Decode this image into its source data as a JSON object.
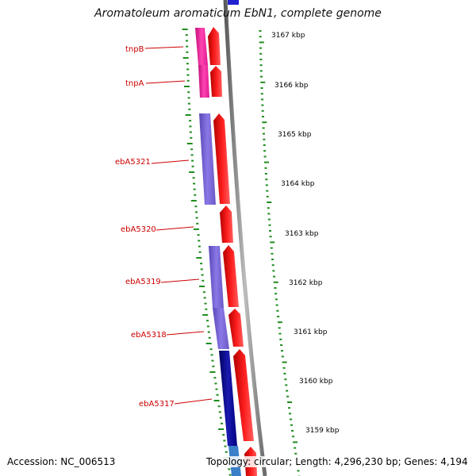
{
  "map": {
    "title": "Aromatoleum aromaticum EbN1, complete genome",
    "accession": "Accession: NC_006513",
    "summary": "Topology: circular; Length: 4,296,230 bp; Genes: 4,194"
  },
  "ticks": [
    "3167 kbp",
    "3166 kbp",
    "3165 kbp",
    "3164 kbp",
    "3163 kbp",
    "3162 kbp",
    "3161 kbp",
    "3160 kbp",
    "3159 kbp"
  ],
  "genes": [
    "tnpB",
    "tnpA",
    "ebA5321",
    "ebA5320",
    "ebA5319",
    "ebA5318",
    "ebA5317"
  ],
  "colors": {
    "forward_cds": "#ff0000",
    "reverse_cds_a": "#7b68d8",
    "reverse_cds_b": "#ff1493",
    "reverse_cds_dark": "#00008b",
    "gc_skew_dots": "#1e8c1e",
    "backbone": "#808080",
    "label_red": "#cc0000"
  }
}
